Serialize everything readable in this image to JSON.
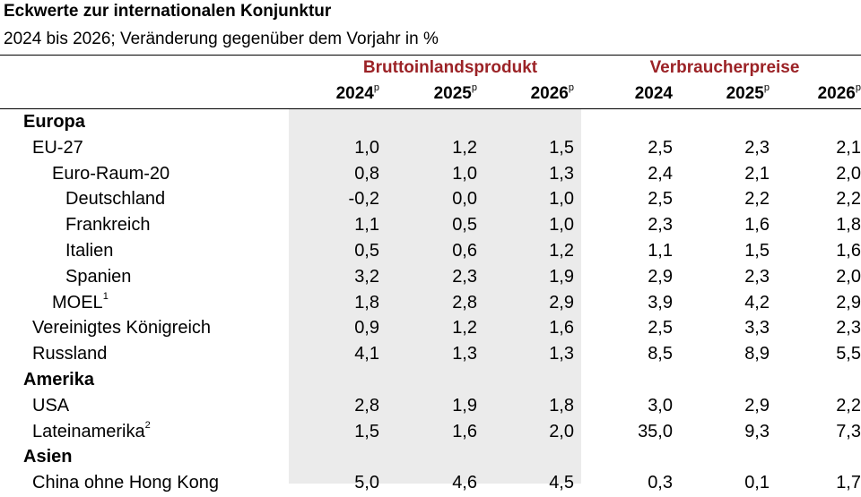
{
  "title": "Eckwerte zur internationalen Konjunktur",
  "subtitle": "2024 bis 2026; Veränderung gegenüber dem Vorjahr in %",
  "groups": {
    "gdp": "Bruttoinlandsprodukt",
    "cpi": "Verbraucherpreise"
  },
  "years": [
    {
      "label": "2024",
      "sup": "p"
    },
    {
      "label": "2025",
      "sup": "p"
    },
    {
      "label": "2026",
      "sup": "p"
    },
    {
      "label": "2024",
      "sup": ""
    },
    {
      "label": "2025",
      "sup": "p"
    },
    {
      "label": "2026",
      "sup": "p"
    }
  ],
  "rows": [
    {
      "label": "Europa",
      "type": "header",
      "indent": 0
    },
    {
      "label": "EU-27",
      "indent": 1,
      "values": [
        "1,0",
        "1,2",
        "1,5",
        "2,5",
        "2,3",
        "2,1"
      ]
    },
    {
      "label": "Euro-Raum-20",
      "indent": 2,
      "values": [
        "0,8",
        "1,0",
        "1,3",
        "2,4",
        "2,1",
        "2,0"
      ]
    },
    {
      "label": "Deutschland",
      "indent": 3,
      "values": [
        "-0,2",
        "0,0",
        "1,0",
        "2,5",
        "2,2",
        "2,2"
      ]
    },
    {
      "label": "Frankreich",
      "indent": 3,
      "values": [
        "1,1",
        "0,5",
        "1,0",
        "2,3",
        "1,6",
        "1,8"
      ]
    },
    {
      "label": "Italien",
      "indent": 3,
      "values": [
        "0,5",
        "0,6",
        "1,2",
        "1,1",
        "1,5",
        "1,6"
      ]
    },
    {
      "label": "Spanien",
      "indent": 3,
      "values": [
        "3,2",
        "2,3",
        "1,9",
        "2,9",
        "2,3",
        "2,0"
      ]
    },
    {
      "label": "MOEL",
      "sup": "1",
      "indent": 2,
      "values": [
        "1,8",
        "2,8",
        "2,9",
        "3,9",
        "4,2",
        "2,9"
      ]
    },
    {
      "label": "Vereinigtes Königreich",
      "indent": 1,
      "values": [
        "0,9",
        "1,2",
        "1,6",
        "2,5",
        "3,3",
        "2,3"
      ]
    },
    {
      "label": "Russland",
      "indent": 1,
      "values": [
        "4,1",
        "1,3",
        "1,3",
        "8,5",
        "8,9",
        "5,5"
      ]
    },
    {
      "label": "Amerika",
      "type": "header",
      "indent": 0
    },
    {
      "label": "USA",
      "indent": 1,
      "values": [
        "2,8",
        "1,9",
        "1,8",
        "3,0",
        "2,9",
        "2,2"
      ]
    },
    {
      "label": "Lateinamerika",
      "sup": "2",
      "indent": 1,
      "values": [
        "1,5",
        "1,6",
        "2,0",
        "35,0",
        "9,3",
        "7,3"
      ]
    },
    {
      "label": "Asien",
      "type": "header",
      "indent": 0
    },
    {
      "label": "China ohne Hong Kong",
      "indent": 1,
      "values": [
        "5,0",
        "4,6",
        "4,5",
        "0,3",
        "0,1",
        "1,7"
      ]
    }
  ]
}
